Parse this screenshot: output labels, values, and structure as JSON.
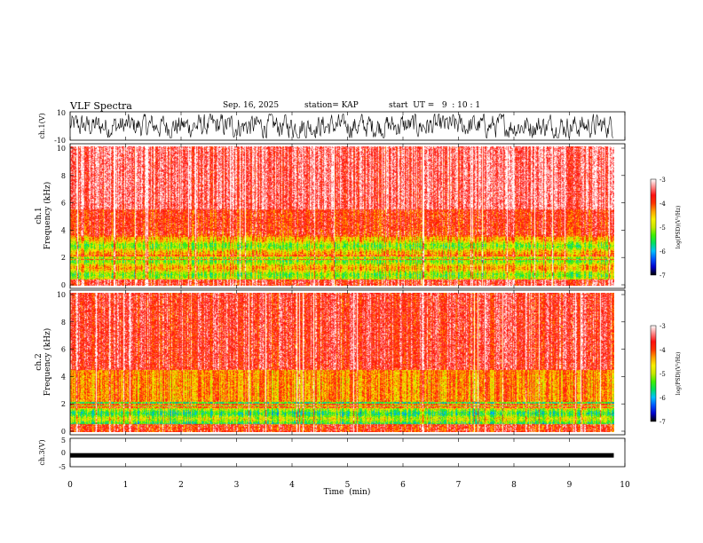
{
  "header": {
    "title": "VLF Spectra",
    "date": "Sep. 16, 2025",
    "station": "station= KAP",
    "start_ut": "start  UT =   9  : 10 : 1"
  },
  "chart_data": [
    {
      "type": "line",
      "name": "ch1-waveform",
      "ylabel": "ch.1(V)",
      "ylim": [
        -10,
        10
      ],
      "yticks": [
        "10",
        "-10"
      ],
      "xlim": [
        0,
        10
      ],
      "description": "dense noisy waveform, amplitude roughly within -9..9 V, spanning 0 to ~9.8 min"
    },
    {
      "type": "heatmap",
      "name": "ch1-spectrogram",
      "ylabel": "ch.1\nFrequency (kHz)",
      "ylabel_line1": "ch.1",
      "ylabel_line2": "Frequency (kHz)",
      "ylim": [
        0,
        10
      ],
      "yticks": [
        "10",
        "8",
        "6",
        "4",
        "2",
        "0"
      ],
      "xlim": [
        0,
        10
      ],
      "data_end_min": 9.8,
      "colorbar": {
        "label": "log(PSD)(V²/Hz)",
        "range": [
          -7,
          -3
        ],
        "ticks": [
          "-3",
          "-4",
          "-5",
          "-6",
          "-7"
        ]
      }
    },
    {
      "type": "heatmap",
      "name": "ch2-spectrogram",
      "ylabel": "ch.2\nFrequency (kHz)",
      "ylabel_line1": "ch.2",
      "ylabel_line2": "Frequency (kHz)",
      "ylim": [
        0,
        10
      ],
      "yticks": [
        "10",
        "8",
        "6",
        "4",
        "2",
        "0"
      ],
      "xlim": [
        0,
        10
      ],
      "data_end_min": 9.8,
      "colorbar": {
        "label": "log(PSD)(V²/Hz)",
        "range": [
          -7,
          -3
        ],
        "ticks": [
          "-3",
          "-4",
          "-5",
          "-6",
          "-7"
        ]
      }
    },
    {
      "type": "line",
      "name": "ch3-waveform",
      "ylabel": "ch.3(V)",
      "ylim": [
        -5,
        5
      ],
      "yticks": [
        "5",
        "0",
        "-5"
      ],
      "xlim": [
        0,
        10
      ],
      "level_v": -1.0,
      "description": "nearly flat thick trace around -1 V"
    }
  ],
  "xaxis": {
    "label": "Time  (min)",
    "ticks": [
      "0",
      "1",
      "2",
      "3",
      "4",
      "5",
      "6",
      "7",
      "8",
      "9",
      "10"
    ]
  },
  "colors": {
    "colormap": [
      "#000000",
      "#0000cc",
      "#0055ff",
      "#00c0ff",
      "#00e060",
      "#40f000",
      "#c8e800",
      "#f8f000",
      "#ffa000",
      "#ff3300",
      "#ff1010",
      "#ff8888",
      "#ffffff"
    ]
  }
}
